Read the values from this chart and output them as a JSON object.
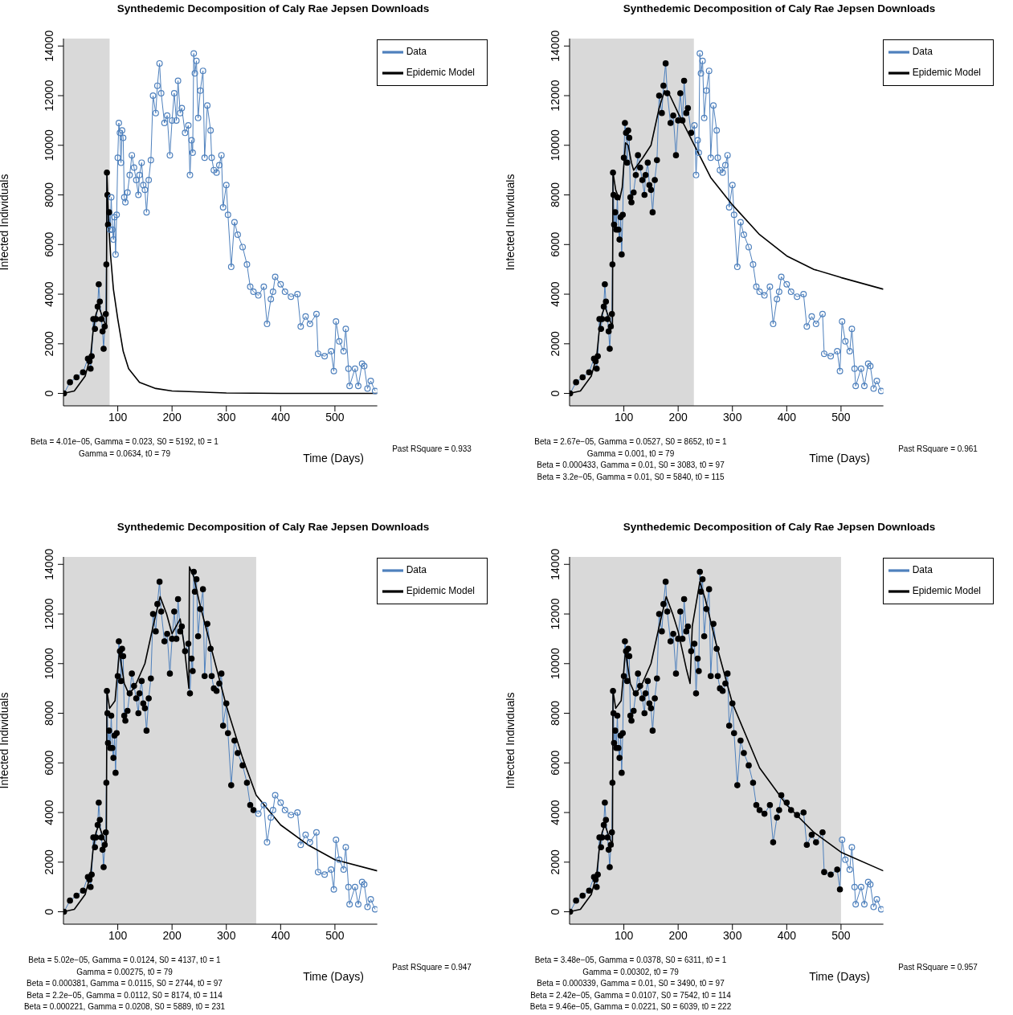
{
  "chart_data": [
    {
      "type": "line",
      "title": "Synthedemic Decomposition of Caly Rae Jepsen Downloads",
      "xlabel": "Time (Days)",
      "ylabel": "Infected Individuals",
      "x": [
        1,
        12,
        24,
        36,
        45,
        48,
        50,
        52,
        55,
        58,
        60,
        63,
        65,
        67,
        70,
        72,
        74,
        76,
        78,
        79,
        80,
        81,
        82,
        84,
        86,
        88,
        90,
        92,
        94,
        96,
        98,
        100,
        102,
        104,
        106,
        108,
        110,
        112,
        114,
        118,
        122,
        126,
        130,
        134,
        138,
        140,
        144,
        147,
        150,
        153,
        157,
        161,
        165,
        170,
        173,
        177,
        180,
        186,
        191,
        196,
        200,
        204,
        208,
        211,
        215,
        218,
        224,
        230,
        233,
        236,
        238,
        240,
        242,
        245,
        248,
        252,
        257,
        260,
        265,
        271,
        273,
        277,
        282,
        287,
        291,
        294,
        300,
        303,
        309,
        315,
        321,
        330,
        338,
        344,
        350,
        359,
        369,
        375,
        382,
        386,
        390,
        400,
        408,
        419,
        431,
        437,
        446,
        454,
        466,
        469,
        481,
        493,
        498,
        502,
        508,
        516,
        520,
        525,
        527,
        537,
        543,
        550,
        554,
        560,
        566,
        574
      ],
      "series": [
        {
          "name": "Data",
          "marker": "circle",
          "color": "#4f81bd",
          "values": [
            0,
            450,
            650,
            850,
            1400,
            1300,
            1000,
            1500,
            3000,
            2600,
            3000,
            3500,
            4400,
            3700,
            3000,
            2500,
            1800,
            2700,
            3200,
            5200,
            8900,
            8000,
            6800,
            7300,
            6600,
            7900,
            6600,
            6200,
            7100,
            5600,
            7200,
            9500,
            10900,
            10500,
            9300,
            10600,
            10300,
            7900,
            7700,
            8100,
            8800,
            9600,
            9100,
            8600,
            8000,
            8800,
            9300,
            8400,
            8200,
            7300,
            8600,
            9400,
            12000,
            11300,
            12400,
            13300,
            12100,
            10900,
            11200,
            9600,
            11000,
            12100,
            11000,
            12600,
            11300,
            11500,
            10500,
            10800,
            8800,
            10200,
            9700,
            13700,
            12900,
            13400,
            11100,
            12200,
            13000,
            9500,
            11600,
            10600,
            9500,
            9000,
            8900,
            9200,
            9600,
            7500,
            8400,
            7200,
            5100,
            6900,
            6400,
            5900,
            5200,
            4300,
            4100,
            3950,
            4300,
            2800,
            3800,
            4100,
            4700,
            4400,
            4100,
            3900,
            4000,
            2700,
            3100,
            2800,
            3200,
            1600,
            1500,
            1700,
            900,
            2900,
            2100,
            1700,
            2600,
            1000,
            300,
            1000,
            300,
            1200,
            1100,
            200,
            500,
            100
          ],
          "colors": [
            "#000000",
            "#000000",
            "#000000",
            "#000000",
            "#000000",
            "#000000",
            "#000000",
            "#000000",
            "#000000",
            "#000000",
            "#000000",
            "#000000",
            "#000000",
            "#000000",
            "#000000",
            "#000000",
            "#000000",
            "#000000",
            "#000000",
            "#000000",
            "#000000",
            "#000000",
            "#000000",
            "#000000",
            "#4f81bd",
            "#4f81bd",
            "#4f81bd",
            "#4f81bd",
            "#4f81bd",
            "#4f81bd",
            "#4f81bd",
            "#4f81bd",
            "#4f81bd",
            "#4f81bd",
            "#4f81bd",
            "#4f81bd",
            "#4f81bd",
            "#4f81bd",
            "#4f81bd",
            "#4f81bd",
            "#4f81bd",
            "#4f81bd",
            "#4f81bd",
            "#4f81bd",
            "#4f81bd",
            "#4f81bd",
            "#4f81bd",
            "#4f81bd",
            "#4f81bd",
            "#4f81bd",
            "#4f81bd",
            "#4f81bd",
            "#4f81bd",
            "#4f81bd",
            "#4f81bd",
            "#4f81bd",
            "#4f81bd",
            "#4f81bd",
            "#4f81bd",
            "#4f81bd",
            "#4f81bd",
            "#4f81bd",
            "#4f81bd",
            "#4f81bd",
            "#4f81bd",
            "#4f81bd",
            "#4f81bd",
            "#4f81bd",
            "#4f81bd",
            "#4f81bd",
            "#4f81bd",
            "#4f81bd",
            "#4f81bd",
            "#4f81bd",
            "#4f81bd",
            "#4f81bd",
            "#4f81bd",
            "#4f81bd",
            "#4f81bd",
            "#4f81bd",
            "#4f81bd",
            "#4f81bd",
            "#4f81bd",
            "#4f81bd",
            "#4f81bd",
            "#4f81bd",
            "#4f81bd",
            "#4f81bd",
            "#4f81bd",
            "#4f81bd",
            "#4f81bd",
            "#4f81bd",
            "#4f81bd",
            "#4f81bd",
            "#4f81bd",
            "#4f81bd",
            "#4f81bd",
            "#4f81bd",
            "#4f81bd",
            "#4f81bd",
            "#4f81bd",
            "#4f81bd",
            "#4f81bd",
            "#4f81bd",
            "#4f81bd",
            "#4f81bd",
            "#4f81bd",
            "#4f81bd",
            "#4f81bd",
            "#4f81bd",
            "#4f81bd",
            "#4f81bd",
            "#4f81bd",
            "#4f81bd",
            "#4f81bd",
            "#4f81bd",
            "#4f81bd",
            "#4f81bd",
            "#4f81bd",
            "#4f81bd",
            "#4f81bd",
            "#4f81bd",
            "#4f81bd",
            "#4f81bd",
            "#4f81bd",
            "#4f81bd"
          ]
        },
        {
          "name": "Epidemic Model",
          "marker": "none",
          "color": "#000000",
          "x": [
            0,
            20,
            40,
            50,
            55,
            60,
            65,
            70,
            75,
            79,
            80,
            83,
            87,
            92,
            100,
            110,
            120,
            140,
            170,
            200,
            300,
            400,
            578
          ],
          "values": [
            0,
            100,
            700,
            1500,
            2600,
            3200,
            3500,
            3200,
            2900,
            2700,
            8900,
            7000,
            5500,
            4200,
            3000,
            1700,
            1000,
            450,
            200,
            100,
            20,
            0,
            0
          ]
        }
      ],
      "bands": [
        {
          "axis": "x",
          "from": 0,
          "to": 85,
          "color": "#d9d9d9"
        }
      ],
      "xlim": [
        0,
        578
      ],
      "xticks": [
        100,
        200,
        300,
        400,
        500
      ],
      "ylim": [
        -500,
        14300
      ],
      "yticks": [
        0,
        2000,
        4000,
        6000,
        8000,
        10000,
        12000,
        14000
      ],
      "grid": false,
      "legend": "top right",
      "line_style": "solid",
      "annotations": [
        "Beta =  4.01e−05, Gamma =  0.023, S0 =  5192, t0 =  1",
        "Gamma =  0.0634, t0 =  79",
        "Past RSquare =  0.933"
      ]
    },
    {
      "type": "line",
      "title": "Synthedemic Decomposition of Caly Rae Jepsen Downloads",
      "xlabel": "Time (Days)",
      "ylabel": "Infected Individuals",
      "x": [
        1,
        12,
        24,
        36,
        45,
        48,
        50,
        52,
        55,
        58,
        60,
        63,
        65,
        67,
        70,
        72,
        74,
        76,
        78,
        79,
        80,
        81,
        82,
        84,
        86,
        88,
        90,
        92,
        94,
        96,
        98,
        100,
        102,
        104,
        106,
        108,
        110,
        112,
        114,
        118,
        122,
        126,
        130,
        134,
        138,
        140,
        144,
        147,
        150,
        153,
        157,
        161,
        165,
        170,
        173,
        177,
        180,
        186,
        191,
        196,
        200,
        204,
        208,
        211,
        215,
        218,
        224,
        230,
        233,
        236,
        238,
        240,
        242,
        245,
        248,
        252,
        257,
        260,
        265,
        271,
        273,
        277,
        282,
        287,
        291,
        294,
        300,
        303,
        309,
        315,
        321,
        330,
        338,
        344,
        350,
        359,
        369,
        375,
        382,
        386,
        390,
        400,
        408,
        419,
        431,
        437,
        446,
        454,
        466,
        469,
        481,
        493,
        498,
        502,
        508,
        516,
        520,
        525,
        527,
        537,
        543,
        550,
        554,
        560,
        566,
        574
      ],
      "series": [
        {
          "name": "Data",
          "marker": "circle",
          "color": "#4f81bd",
          "values": [
            0,
            450,
            650,
            850,
            1400,
            1300,
            1000,
            1500,
            3000,
            2600,
            3000,
            3500,
            4400,
            3700,
            3000,
            2500,
            1800,
            2700,
            3200,
            5200,
            8900,
            8000,
            6800,
            7300,
            6600,
            7900,
            6600,
            6200,
            7100,
            5600,
            7200,
            9500,
            10900,
            10500,
            9300,
            10600,
            10300,
            7900,
            7700,
            8100,
            8800,
            9600,
            9100,
            8600,
            8000,
            8800,
            9300,
            8400,
            8200,
            7300,
            8600,
            9400,
            12000,
            11300,
            12400,
            13300,
            12100,
            10900,
            11200,
            9600,
            11000,
            12100,
            11000,
            12600,
            11300,
            11500,
            10500,
            10800,
            8800,
            10200,
            9700,
            13700,
            12900,
            13400,
            11100,
            12200,
            13000,
            9500,
            11600,
            10600,
            9500,
            9000,
            8900,
            9200,
            9600,
            7500,
            8400,
            7200,
            5100,
            6900,
            6400,
            5900,
            5200,
            4300,
            4100,
            3950,
            4300,
            2800,
            3800,
            4100,
            4700,
            4400,
            4100,
            3900,
            4000,
            2700,
            3100,
            2800,
            3200,
            1600,
            1500,
            1700,
            900,
            2900,
            2100,
            1700,
            2600,
            1000,
            300,
            1000,
            300,
            1200,
            1100,
            200,
            500,
            100
          ],
          "colors": [
            "#000000",
            "#000000",
            "#000000",
            "#000000",
            "#000000",
            "#000000",
            "#000000",
            "#000000",
            "#000000",
            "#000000",
            "#000000",
            "#000000",
            "#000000",
            "#000000",
            "#000000",
            "#000000",
            "#000000",
            "#000000",
            "#000000",
            "#000000",
            "#000000",
            "#000000",
            "#000000",
            "#000000",
            "#000000",
            "#000000",
            "#000000",
            "#000000",
            "#000000",
            "#000000",
            "#000000",
            "#000000",
            "#000000",
            "#000000",
            "#000000",
            "#000000",
            "#000000",
            "#000000",
            "#000000",
            "#000000",
            "#000000",
            "#000000",
            "#000000",
            "#000000",
            "#000000",
            "#000000",
            "#000000",
            "#000000",
            "#000000",
            "#000000",
            "#000000",
            "#000000",
            "#000000",
            "#000000",
            "#000000",
            "#000000",
            "#000000",
            "#000000",
            "#000000",
            "#000000",
            "#000000",
            "#000000",
            "#000000",
            "#000000",
            "#000000",
            "#000000",
            "#000000",
            "#4f81bd",
            "#4f81bd",
            "#4f81bd",
            "#4f81bd",
            "#4f81bd",
            "#4f81bd",
            "#4f81bd",
            "#4f81bd",
            "#4f81bd",
            "#4f81bd",
            "#4f81bd",
            "#4f81bd",
            "#4f81bd",
            "#4f81bd",
            "#4f81bd",
            "#4f81bd",
            "#4f81bd",
            "#4f81bd",
            "#4f81bd",
            "#4f81bd",
            "#4f81bd",
            "#4f81bd",
            "#4f81bd",
            "#4f81bd",
            "#4f81bd",
            "#4f81bd",
            "#4f81bd",
            "#4f81bd",
            "#4f81bd",
            "#4f81bd",
            "#4f81bd",
            "#4f81bd",
            "#4f81bd",
            "#4f81bd",
            "#4f81bd",
            "#4f81bd",
            "#4f81bd",
            "#4f81bd",
            "#4f81bd",
            "#4f81bd",
            "#4f81bd",
            "#4f81bd",
            "#4f81bd",
            "#4f81bd",
            "#4f81bd",
            "#4f81bd",
            "#4f81bd",
            "#4f81bd",
            "#4f81bd",
            "#4f81bd",
            "#4f81bd",
            "#4f81bd",
            "#4f81bd",
            "#4f81bd",
            "#4f81bd",
            "#4f81bd",
            "#4f81bd",
            "#4f81bd",
            "#4f81bd"
          ]
        },
        {
          "name": "Epidemic Model",
          "marker": "none",
          "color": "#000000",
          "x": [
            0,
            20,
            40,
            50,
            55,
            60,
            65,
            70,
            75,
            79,
            80,
            85,
            92,
            97,
            103,
            108,
            114,
            118,
            125,
            135,
            150,
            165,
            175,
            185,
            200,
            230,
            260,
            300,
            350,
            400,
            450,
            500,
            578
          ],
          "values": [
            0,
            100,
            700,
            1500,
            2600,
            3200,
            3500,
            3200,
            2900,
            2700,
            8900,
            8200,
            7800,
            8300,
            10100,
            10000,
            9300,
            9000,
            9200,
            9500,
            10000,
            11500,
            12200,
            12000,
            11300,
            10000,
            8700,
            7600,
            6400,
            5540,
            5000,
            4670,
            4200
          ]
        }
      ],
      "bands": [
        {
          "axis": "x",
          "from": 0,
          "to": 229,
          "color": "#d9d9d9"
        }
      ],
      "xlim": [
        0,
        578
      ],
      "xticks": [
        100,
        200,
        300,
        400,
        500
      ],
      "ylim": [
        -500,
        14300
      ],
      "yticks": [
        0,
        2000,
        4000,
        6000,
        8000,
        10000,
        12000,
        14000
      ],
      "grid": false,
      "legend": "top right",
      "line_style": "solid",
      "annotations": [
        "Beta =  2.67e−05, Gamma =  0.0527, S0 =  8652, t0 =  1",
        "Gamma =  0.001, t0 =  79",
        "Beta =  0.000433, Gamma =  0.01, S0 =  3083, t0 =  97",
        "Beta =  3.2e−05, Gamma =  0.01, S0 =  5840, t0 =  115",
        "Past RSquare =  0.961"
      ]
    },
    {
      "type": "line",
      "title": "Synthedemic Decomposition of Caly Rae Jepsen Downloads",
      "xlabel": "Time (Days)",
      "ylabel": "Infected Individuals",
      "x": [
        1,
        12,
        24,
        36,
        45,
        48,
        50,
        52,
        55,
        58,
        60,
        63,
        65,
        67,
        70,
        72,
        74,
        76,
        78,
        79,
        80,
        81,
        82,
        84,
        86,
        88,
        90,
        92,
        94,
        96,
        98,
        100,
        102,
        104,
        106,
        108,
        110,
        112,
        114,
        118,
        122,
        126,
        130,
        134,
        138,
        140,
        144,
        147,
        150,
        153,
        157,
        161,
        165,
        170,
        173,
        177,
        180,
        186,
        191,
        196,
        200,
        204,
        208,
        211,
        215,
        218,
        224,
        230,
        233,
        236,
        238,
        240,
        242,
        245,
        248,
        252,
        257,
        260,
        265,
        271,
        273,
        277,
        282,
        287,
        291,
        294,
        300,
        303,
        309,
        315,
        321,
        330,
        338,
        344,
        350,
        359,
        369,
        375,
        382,
        386,
        390,
        400,
        408,
        419,
        431,
        437,
        446,
        454,
        466,
        469,
        481,
        493,
        498,
        502,
        508,
        516,
        520,
        525,
        527,
        537,
        543,
        550,
        554,
        560,
        566,
        574
      ],
      "series": [
        {
          "name": "Data",
          "marker": "circle",
          "color": "#4f81bd",
          "values": [
            0,
            450,
            650,
            850,
            1400,
            1300,
            1000,
            1500,
            3000,
            2600,
            3000,
            3500,
            4400,
            3700,
            3000,
            2500,
            1800,
            2700,
            3200,
            5200,
            8900,
            8000,
            6800,
            7300,
            6600,
            7900,
            6600,
            6200,
            7100,
            5600,
            7200,
            9500,
            10900,
            10500,
            9300,
            10600,
            10300,
            7900,
            7700,
            8100,
            8800,
            9600,
            9100,
            8600,
            8000,
            8800,
            9300,
            8400,
            8200,
            7300,
            8600,
            9400,
            12000,
            11300,
            12400,
            13300,
            12100,
            10900,
            11200,
            9600,
            11000,
            12100,
            11000,
            12600,
            11300,
            11500,
            10500,
            10800,
            8800,
            10200,
            9700,
            13700,
            12900,
            13400,
            11100,
            12200,
            13000,
            9500,
            11600,
            10600,
            9500,
            9000,
            8900,
            9200,
            9600,
            7500,
            8400,
            7200,
            5100,
            6900,
            6400,
            5900,
            5200,
            4300,
            4100,
            3950,
            4300,
            2800,
            3800,
            4100,
            4700,
            4400,
            4100,
            3900,
            4000,
            2700,
            3100,
            2800,
            3200,
            1600,
            1500,
            1700,
            900,
            2900,
            2100,
            1700,
            2600,
            1000,
            300,
            1000,
            300,
            1200,
            1100,
            200,
            500,
            100
          ],
          "colors": [
            "#000000",
            "#000000",
            "#000000",
            "#000000",
            "#000000",
            "#000000",
            "#000000",
            "#000000",
            "#000000",
            "#000000",
            "#000000",
            "#000000",
            "#000000",
            "#000000",
            "#000000",
            "#000000",
            "#000000",
            "#000000",
            "#000000",
            "#000000",
            "#000000",
            "#000000",
            "#000000",
            "#000000",
            "#000000",
            "#000000",
            "#000000",
            "#000000",
            "#000000",
            "#000000",
            "#000000",
            "#000000",
            "#000000",
            "#000000",
            "#000000",
            "#000000",
            "#000000",
            "#000000",
            "#000000",
            "#000000",
            "#000000",
            "#000000",
            "#000000",
            "#000000",
            "#000000",
            "#000000",
            "#000000",
            "#000000",
            "#000000",
            "#000000",
            "#000000",
            "#000000",
            "#000000",
            "#000000",
            "#000000",
            "#000000",
            "#000000",
            "#000000",
            "#000000",
            "#000000",
            "#000000",
            "#000000",
            "#000000",
            "#000000",
            "#000000",
            "#000000",
            "#000000",
            "#000000",
            "#000000",
            "#000000",
            "#000000",
            "#000000",
            "#000000",
            "#000000",
            "#000000",
            "#000000",
            "#000000",
            "#000000",
            "#000000",
            "#000000",
            "#000000",
            "#000000",
            "#000000",
            "#000000",
            "#000000",
            "#000000",
            "#000000",
            "#000000",
            "#000000",
            "#000000",
            "#000000",
            "#000000",
            "#000000",
            "#000000",
            "#000000",
            "#4f81bd",
            "#4f81bd",
            "#4f81bd",
            "#4f81bd",
            "#4f81bd",
            "#4f81bd",
            "#4f81bd",
            "#4f81bd",
            "#4f81bd",
            "#4f81bd",
            "#4f81bd",
            "#4f81bd",
            "#4f81bd",
            "#4f81bd",
            "#4f81bd",
            "#4f81bd",
            "#4f81bd",
            "#4f81bd",
            "#4f81bd",
            "#4f81bd",
            "#4f81bd",
            "#4f81bd",
            "#4f81bd",
            "#4f81bd",
            "#4f81bd",
            "#4f81bd",
            "#4f81bd",
            "#4f81bd",
            "#4f81bd",
            "#4f81bd",
            "#4f81bd"
          ]
        },
        {
          "name": "Epidemic Model",
          "marker": "none",
          "color": "#000000",
          "x": [
            0,
            20,
            40,
            50,
            55,
            60,
            65,
            70,
            75,
            79,
            80,
            85,
            95,
            103,
            112,
            120,
            130,
            150,
            165,
            178,
            190,
            200,
            215,
            222,
            231,
            232,
            240,
            250,
            270,
            300,
            330,
            355,
            400,
            450,
            500,
            578
          ],
          "values": [
            0,
            100,
            700,
            1500,
            2600,
            3200,
            3500,
            3200,
            2900,
            2700,
            8900,
            8200,
            8500,
            10500,
            9200,
            8800,
            9000,
            10000,
            11500,
            12700,
            12000,
            11200,
            11800,
            10800,
            9000,
            13900,
            13500,
            12500,
            10800,
            8300,
            6200,
            4700,
            3500,
            2700,
            2100,
            1650
          ]
        }
      ],
      "bands": [
        {
          "axis": "x",
          "from": 0,
          "to": 355,
          "color": "#d9d9d9"
        }
      ],
      "xlim": [
        0,
        578
      ],
      "xticks": [
        100,
        200,
        300,
        400,
        500
      ],
      "ylim": [
        -500,
        14300
      ],
      "yticks": [
        0,
        2000,
        4000,
        6000,
        8000,
        10000,
        12000,
        14000
      ],
      "grid": false,
      "legend": "top right",
      "line_style": "solid",
      "annotations": [
        "Beta =  5.02e−05, Gamma =  0.0124, S0 =  4137, t0 =  1",
        "Gamma =  0.00275, t0 =  79",
        "Beta =  0.000381, Gamma =  0.0115, S0 =  2744, t0 =  97",
        "Beta =  2.2e−05, Gamma =  0.0112, S0 =  8174, t0 =  114",
        "Beta =  0.000221, Gamma =  0.0208, S0 =  5889, t0 =  231",
        "Past RSquare =  0.947"
      ]
    },
    {
      "type": "line",
      "title": "Synthedemic Decomposition of Caly Rae Jepsen Downloads",
      "xlabel": "Time (Days)",
      "ylabel": "Infected Individuals",
      "x": [
        1,
        12,
        24,
        36,
        45,
        48,
        50,
        52,
        55,
        58,
        60,
        63,
        65,
        67,
        70,
        72,
        74,
        76,
        78,
        79,
        80,
        81,
        82,
        84,
        86,
        88,
        90,
        92,
        94,
        96,
        98,
        100,
        102,
        104,
        106,
        108,
        110,
        112,
        114,
        118,
        122,
        126,
        130,
        134,
        138,
        140,
        144,
        147,
        150,
        153,
        157,
        161,
        165,
        170,
        173,
        177,
        180,
        186,
        191,
        196,
        200,
        204,
        208,
        211,
        215,
        218,
        224,
        230,
        233,
        236,
        238,
        240,
        242,
        245,
        248,
        252,
        257,
        260,
        265,
        271,
        273,
        277,
        282,
        287,
        291,
        294,
        300,
        303,
        309,
        315,
        321,
        330,
        338,
        344,
        350,
        359,
        369,
        375,
        382,
        386,
        390,
        400,
        408,
        419,
        431,
        437,
        446,
        454,
        466,
        469,
        481,
        493,
        498,
        502,
        508,
        516,
        520,
        525,
        527,
        537,
        543,
        550,
        554,
        560,
        566,
        574
      ],
      "series": [
        {
          "name": "Data",
          "marker": "circle",
          "color": "#4f81bd",
          "values": [
            0,
            450,
            650,
            850,
            1400,
            1300,
            1000,
            1500,
            3000,
            2600,
            3000,
            3500,
            4400,
            3700,
            3000,
            2500,
            1800,
            2700,
            3200,
            5200,
            8900,
            8000,
            6800,
            7300,
            6600,
            7900,
            6600,
            6200,
            7100,
            5600,
            7200,
            9500,
            10900,
            10500,
            9300,
            10600,
            10300,
            7900,
            7700,
            8100,
            8800,
            9600,
            9100,
            8600,
            8000,
            8800,
            9300,
            8400,
            8200,
            7300,
            8600,
            9400,
            12000,
            11300,
            12400,
            13300,
            12100,
            10900,
            11200,
            9600,
            11000,
            12100,
            11000,
            12600,
            11300,
            11500,
            10500,
            10800,
            8800,
            10200,
            9700,
            13700,
            12900,
            13400,
            11100,
            12200,
            13000,
            9500,
            11600,
            10600,
            9500,
            9000,
            8900,
            9200,
            9600,
            7500,
            8400,
            7200,
            5100,
            6900,
            6400,
            5900,
            5200,
            4300,
            4100,
            3950,
            4300,
            2800,
            3800,
            4100,
            4700,
            4400,
            4100,
            3900,
            4000,
            2700,
            3100,
            2800,
            3200,
            1600,
            1500,
            1700,
            900,
            2900,
            2100,
            1700,
            2600,
            1000,
            300,
            1000,
            300,
            1200,
            1100,
            200,
            500,
            100
          ],
          "colors": [
            "#000000",
            "#000000",
            "#000000",
            "#000000",
            "#000000",
            "#000000",
            "#000000",
            "#000000",
            "#000000",
            "#000000",
            "#000000",
            "#000000",
            "#000000",
            "#000000",
            "#000000",
            "#000000",
            "#000000",
            "#000000",
            "#000000",
            "#000000",
            "#000000",
            "#000000",
            "#000000",
            "#000000",
            "#000000",
            "#000000",
            "#000000",
            "#000000",
            "#000000",
            "#000000",
            "#000000",
            "#000000",
            "#000000",
            "#000000",
            "#000000",
            "#000000",
            "#000000",
            "#000000",
            "#000000",
            "#000000",
            "#000000",
            "#000000",
            "#000000",
            "#000000",
            "#000000",
            "#000000",
            "#000000",
            "#000000",
            "#000000",
            "#000000",
            "#000000",
            "#000000",
            "#000000",
            "#000000",
            "#000000",
            "#000000",
            "#000000",
            "#000000",
            "#000000",
            "#000000",
            "#000000",
            "#000000",
            "#000000",
            "#000000",
            "#000000",
            "#000000",
            "#000000",
            "#000000",
            "#000000",
            "#000000",
            "#000000",
            "#000000",
            "#000000",
            "#000000",
            "#000000",
            "#000000",
            "#000000",
            "#000000",
            "#000000",
            "#000000",
            "#000000",
            "#000000",
            "#000000",
            "#000000",
            "#000000",
            "#000000",
            "#000000",
            "#000000",
            "#000000",
            "#000000",
            "#000000",
            "#000000",
            "#000000",
            "#000000",
            "#000000",
            "#000000",
            "#000000",
            "#000000",
            "#000000",
            "#000000",
            "#000000",
            "#000000",
            "#000000",
            "#000000",
            "#000000",
            "#000000",
            "#000000",
            "#000000",
            "#000000",
            "#000000",
            "#000000",
            "#000000",
            "#000000",
            "#4f81bd",
            "#4f81bd",
            "#4f81bd",
            "#4f81bd",
            "#4f81bd",
            "#4f81bd",
            "#4f81bd",
            "#4f81bd",
            "#4f81bd",
            "#4f81bd",
            "#4f81bd",
            "#4f81bd",
            "#4f81bd"
          ]
        },
        {
          "name": "Epidemic Model",
          "marker": "none",
          "color": "#000000",
          "x": [
            0,
            20,
            40,
            50,
            55,
            60,
            65,
            70,
            75,
            79,
            80,
            85,
            95,
            103,
            112,
            120,
            130,
            150,
            165,
            178,
            190,
            200,
            215,
            222,
            226,
            240,
            250,
            270,
            300,
            350,
            400,
            450,
            500,
            578
          ],
          "values": [
            0,
            100,
            700,
            1500,
            2600,
            3200,
            3500,
            3200,
            2900,
            2700,
            8900,
            8200,
            8500,
            10500,
            9200,
            8800,
            9000,
            10000,
            11500,
            12700,
            12000,
            11300,
            9800,
            9200,
            11500,
            13300,
            12600,
            10800,
            8400,
            5800,
            4300,
            3200,
            2400,
            1650
          ]
        }
      ],
      "bands": [
        {
          "axis": "x",
          "from": 0,
          "to": 500,
          "color": "#d9d9d9"
        }
      ],
      "xlim": [
        0,
        578
      ],
      "xticks": [
        100,
        200,
        300,
        400,
        500
      ],
      "ylim": [
        -500,
        14300
      ],
      "yticks": [
        0,
        2000,
        4000,
        6000,
        8000,
        10000,
        12000,
        14000
      ],
      "grid": false,
      "legend": "top right",
      "line_style": "solid",
      "annotations": [
        "Beta =  3.48e−05, Gamma =  0.0378, S0 =  6311, t0 =  1",
        "Gamma =  0.00302, t0 =  79",
        "Beta =  0.000339, Gamma =  0.01, S0 =  3490, t0 =  97",
        "Beta =  2.42e−05, Gamma =  0.0107, S0 =  7542, t0 =  114",
        "Beta =  9.46e−05, Gamma =  0.0221, S0 =  6039, t0 =  222",
        "Past RSquare =  0.957"
      ]
    }
  ]
}
